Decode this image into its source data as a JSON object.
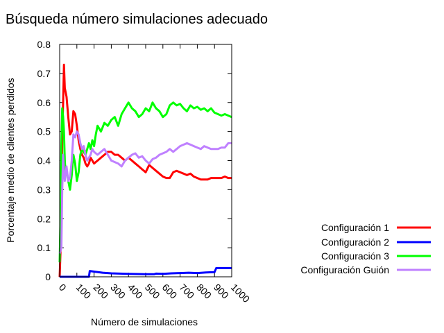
{
  "chart_data": {
    "type": "line",
    "title": "Búsqueda número simulaciones adecuado",
    "xlabel": "Número de simulaciones",
    "ylabel": "Porcentaje medio de clientes perdidos",
    "xlim": [
      0,
      1000
    ],
    "ylim": [
      0,
      0.8
    ],
    "xticks": [
      "0",
      "100",
      "200",
      "300",
      "400",
      "500",
      "600",
      "700",
      "800",
      "900",
      "1000"
    ],
    "yticks": [
      "0",
      "0.1",
      "0.2",
      "0.3",
      "0.4",
      "0.5",
      "0.6",
      "0.7",
      "0.8"
    ],
    "grid": false,
    "legend": "bottom-right",
    "series": [
      {
        "name": "Configuración 1",
        "color": "#ff0000",
        "x": [
          0,
          10,
          15,
          20,
          25,
          30,
          40,
          50,
          60,
          70,
          80,
          90,
          100,
          110,
          120,
          130,
          140,
          150,
          160,
          170,
          180,
          200,
          220,
          240,
          260,
          280,
          300,
          320,
          340,
          360,
          380,
          400,
          420,
          440,
          460,
          480,
          500,
          520,
          540,
          560,
          580,
          600,
          620,
          640,
          660,
          680,
          700,
          720,
          740,
          760,
          780,
          800,
          820,
          840,
          860,
          880,
          900,
          920,
          940,
          960,
          980,
          1000
        ],
        "values": [
          0.0,
          0.18,
          0.5,
          0.6,
          0.73,
          0.65,
          0.62,
          0.55,
          0.49,
          0.5,
          0.57,
          0.56,
          0.52,
          0.47,
          0.44,
          0.42,
          0.41,
          0.39,
          0.38,
          0.39,
          0.41,
          0.39,
          0.4,
          0.41,
          0.42,
          0.43,
          0.43,
          0.42,
          0.42,
          0.41,
          0.4,
          0.41,
          0.4,
          0.39,
          0.38,
          0.37,
          0.36,
          0.385,
          0.375,
          0.365,
          0.355,
          0.345,
          0.34,
          0.34,
          0.36,
          0.365,
          0.36,
          0.355,
          0.35,
          0.355,
          0.345,
          0.34,
          0.335,
          0.335,
          0.335,
          0.34,
          0.34,
          0.34,
          0.34,
          0.345,
          0.34,
          0.34
        ]
      },
      {
        "name": "Configuración 2",
        "color": "#0000ff",
        "x": [
          0,
          50,
          100,
          150,
          170,
          175,
          200,
          250,
          300,
          400,
          500,
          550,
          560,
          600,
          650,
          700,
          750,
          800,
          850,
          900,
          910,
          950,
          1000
        ],
        "values": [
          0.0,
          0.0,
          0.0,
          0.0,
          0.0,
          0.02,
          0.018,
          0.014,
          0.012,
          0.01,
          0.009,
          0.009,
          0.011,
          0.01,
          0.012,
          0.013,
          0.014,
          0.013,
          0.015,
          0.016,
          0.03,
          0.03,
          0.03
        ]
      },
      {
        "name": "Configuración 3",
        "color": "#00ff00",
        "x": [
          0,
          5,
          10,
          15,
          20,
          25,
          30,
          35,
          40,
          50,
          60,
          70,
          80,
          90,
          100,
          110,
          120,
          130,
          140,
          150,
          160,
          170,
          180,
          190,
          200,
          210,
          220,
          240,
          260,
          280,
          300,
          320,
          340,
          360,
          380,
          400,
          420,
          440,
          460,
          480,
          500,
          520,
          540,
          560,
          580,
          600,
          620,
          640,
          660,
          680,
          700,
          720,
          740,
          760,
          780,
          800,
          820,
          840,
          860,
          880,
          900,
          920,
          940,
          960,
          980,
          1000
        ],
        "values": [
          0.05,
          0.2,
          0.45,
          0.58,
          0.55,
          0.5,
          0.4,
          0.35,
          0.37,
          0.33,
          0.3,
          0.35,
          0.42,
          0.39,
          0.33,
          0.36,
          0.42,
          0.44,
          0.43,
          0.42,
          0.44,
          0.46,
          0.44,
          0.47,
          0.45,
          0.49,
          0.52,
          0.5,
          0.53,
          0.52,
          0.54,
          0.55,
          0.52,
          0.56,
          0.58,
          0.6,
          0.58,
          0.57,
          0.55,
          0.56,
          0.58,
          0.57,
          0.6,
          0.58,
          0.57,
          0.55,
          0.56,
          0.59,
          0.6,
          0.59,
          0.595,
          0.58,
          0.57,
          0.59,
          0.58,
          0.585,
          0.575,
          0.58,
          0.57,
          0.58,
          0.565,
          0.56,
          0.555,
          0.56,
          0.555,
          0.55
        ]
      },
      {
        "name": "Configuración Guión",
        "color": "#bf80ff",
        "x": [
          0,
          10,
          15,
          20,
          25,
          30,
          40,
          50,
          60,
          70,
          80,
          90,
          100,
          110,
          120,
          130,
          140,
          150,
          160,
          170,
          180,
          190,
          200,
          220,
          240,
          260,
          280,
          300,
          320,
          340,
          360,
          380,
          400,
          420,
          440,
          460,
          480,
          500,
          520,
          540,
          560,
          580,
          600,
          620,
          640,
          660,
          680,
          700,
          720,
          740,
          760,
          780,
          800,
          820,
          840,
          860,
          880,
          900,
          920,
          940,
          960,
          980,
          1000
        ],
        "values": [
          0.08,
          0.1,
          0.3,
          0.42,
          0.36,
          0.33,
          0.38,
          0.33,
          0.34,
          0.4,
          0.49,
          0.48,
          0.5,
          0.49,
          0.46,
          0.44,
          0.45,
          0.42,
          0.4,
          0.41,
          0.42,
          0.44,
          0.43,
          0.42,
          0.43,
          0.44,
          0.42,
          0.4,
          0.395,
          0.39,
          0.38,
          0.4,
          0.41,
          0.42,
          0.425,
          0.41,
          0.415,
          0.4,
          0.39,
          0.405,
          0.41,
          0.42,
          0.425,
          0.43,
          0.44,
          0.43,
          0.44,
          0.45,
          0.455,
          0.46,
          0.455,
          0.45,
          0.445,
          0.44,
          0.45,
          0.445,
          0.44,
          0.44,
          0.44,
          0.445,
          0.445,
          0.46,
          0.46
        ]
      }
    ]
  }
}
